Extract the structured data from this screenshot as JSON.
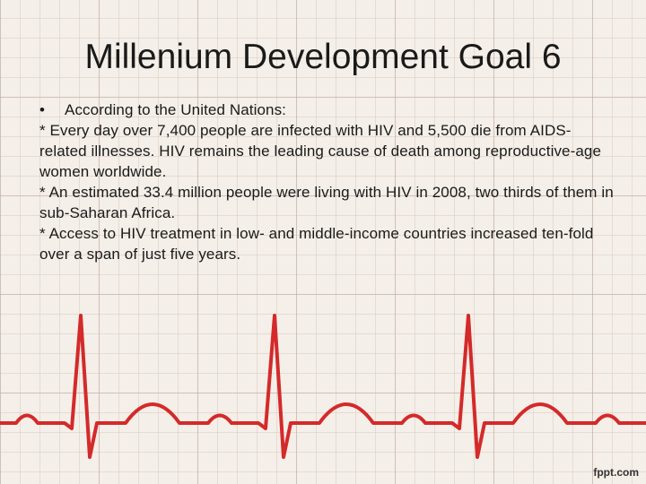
{
  "header": {
    "title": "Millenium Development Goal 6"
  },
  "body": {
    "paragraphs": [
      "According to the United Nations:",
      "* Every day over 7,400 people are infected with HIV and 5,500 die from AIDS- related illnesses. HIV remains the leading cause of death among reproductive-age women worldwide.",
      "* An estimated 33.4 million people were living with HIV in 2008, two thirds of them in sub-Saharan Africa.",
      "* Access to HIV treatment in low- and middle-income countries increased ten-fold over a span of just five years."
    ]
  },
  "footer": {
    "watermark": "fppt.com"
  }
}
